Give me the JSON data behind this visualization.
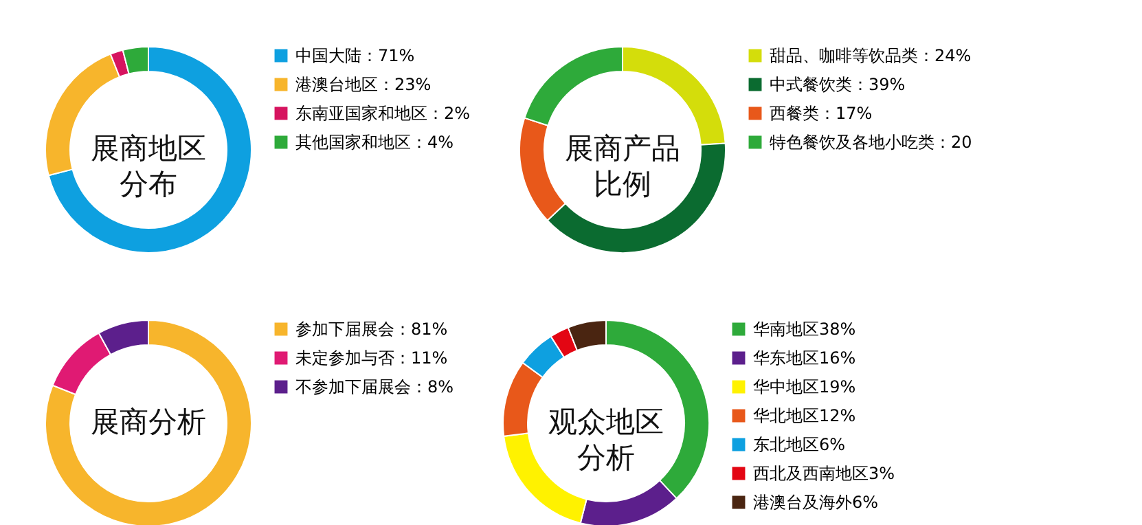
{
  "chart_data": [
    {
      "type": "donut",
      "title": "展商地区分布",
      "legend": "right",
      "categories": [
        "中国大陆：71%",
        "港澳台地区：23%",
        "东南亚国家和地区：2%",
        "其他国家和地区：4%"
      ],
      "values": [
        71,
        23,
        2,
        4
      ],
      "colors": [
        "#0ea0e0",
        "#f7b52c",
        "#d6145f",
        "#2eaa3a"
      ]
    },
    {
      "type": "donut",
      "title": "展商产品比例",
      "legend": "right",
      "categories": [
        "甜品、咖啡等饮品类：24%",
        "中式餐饮类：39%",
        "西餐类：17%",
        "特色餐饮及各地小吃类：20"
      ],
      "values": [
        24,
        39,
        17,
        20
      ],
      "colors": [
        "#d4dd0b",
        "#0b6b30",
        "#e8581a",
        "#2eaa3a"
      ]
    },
    {
      "type": "donut",
      "title": "展商分析",
      "legend": "right",
      "categories": [
        "参加下届展会：81%",
        "未定参加与否：11%",
        "不参加下届展会：8%"
      ],
      "values": [
        81,
        11,
        8
      ],
      "colors": [
        "#f7b52c",
        "#e01a73",
        "#5c1f8c"
      ]
    },
    {
      "type": "donut",
      "title": "观众地区分析",
      "legend": "right",
      "categories": [
        "华南地区38%",
        "华东地区16%",
        "华中地区19%",
        "华北地区12%",
        "东北地区6%",
        "西北及西南地区3%",
        "港澳台及海外6%"
      ],
      "values": [
        38,
        16,
        19,
        12,
        6,
        3,
        6
      ],
      "colors": [
        "#2eaa3a",
        "#5c1f8c",
        "#fff200",
        "#e8581a",
        "#0ea0e0",
        "#e30613",
        "#4a2511"
      ]
    }
  ]
}
